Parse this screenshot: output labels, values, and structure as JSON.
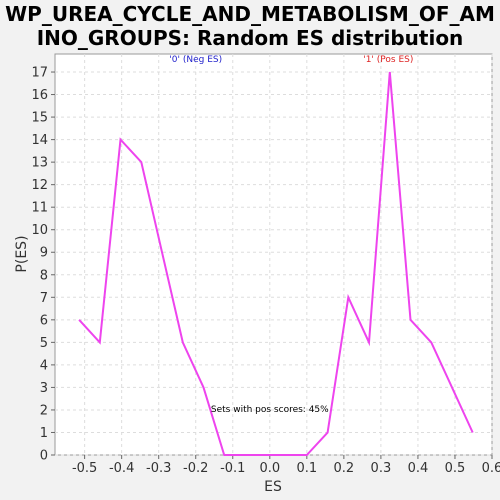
{
  "chart_data": {
    "type": "line",
    "title_line1": "WP_UREA_CYCLE_AND_METABOLISM_OF_AM",
    "title_line2": "INO_GROUPS: Random ES distribution",
    "xlabel": "ES",
    "ylabel": "P(ES)",
    "xlim": [
      -0.58,
      0.6
    ],
    "ylim": [
      0,
      17.8
    ],
    "grid": true,
    "x_ticks": [
      -0.5,
      -0.4,
      -0.3,
      -0.2,
      -0.1,
      0.0,
      0.1,
      0.2,
      0.3,
      0.4,
      0.5,
      0.6
    ],
    "x_tick_labels": [
      "-0.5",
      "-0.4",
      "-0.3",
      "-0.2",
      "-0.1",
      "0.0",
      "0.1",
      "0.2",
      "0.3",
      "0.4",
      "0.5",
      "0.6"
    ],
    "y_ticks": [
      0,
      1,
      2,
      3,
      4,
      5,
      6,
      7,
      8,
      9,
      10,
      11,
      12,
      13,
      14,
      15,
      16,
      17
    ],
    "series": [
      {
        "name": "P(ES)",
        "color": "#ee44ee",
        "x": [
          -0.515,
          -0.459,
          -0.403,
          -0.347,
          -0.291,
          -0.235,
          -0.179,
          -0.123,
          0.1,
          0.156,
          0.212,
          0.268,
          0.324,
          0.38,
          0.436,
          0.492,
          0.548
        ],
        "y": [
          6,
          5,
          14,
          13,
          9,
          5,
          3,
          0,
          0,
          1,
          7,
          5,
          17,
          6,
          5,
          3,
          1
        ]
      }
    ],
    "annotations": [
      {
        "text": "'0' (Neg ES)",
        "x": -0.2,
        "y": 17.45,
        "color": "#2222cc"
      },
      {
        "text": "'1' (Pos ES)",
        "x": 0.32,
        "y": 17.45,
        "color": "#dd2222"
      },
      {
        "text": "Sets with pos scores: 45%",
        "x": 0.0,
        "y": 1.9,
        "color": "#000000"
      }
    ]
  }
}
